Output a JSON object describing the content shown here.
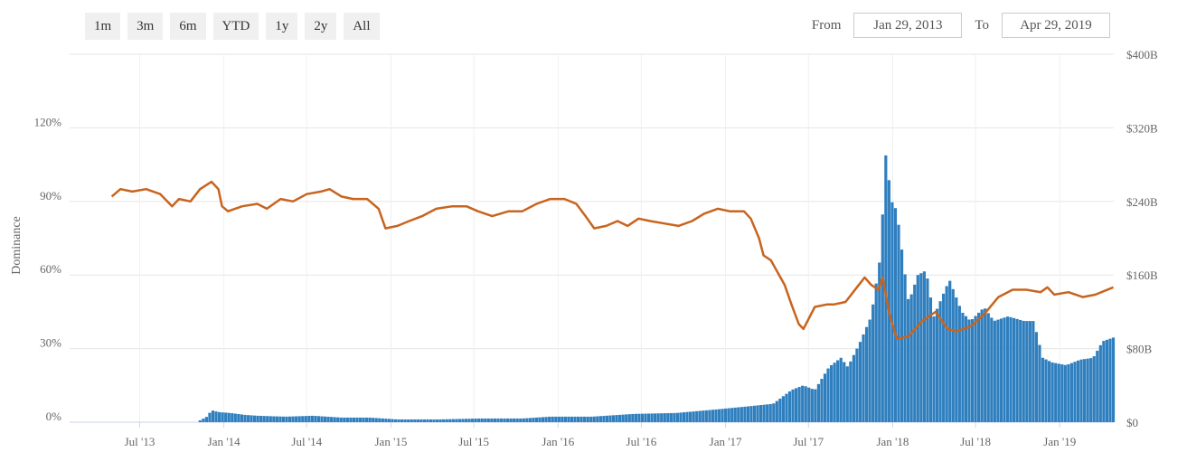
{
  "toolbar": {
    "ranges": [
      "1m",
      "3m",
      "6m",
      "YTD",
      "1y",
      "2y",
      "All"
    ]
  },
  "date_range": {
    "from_label": "From",
    "from_value": "Jan 29, 2013",
    "to_label": "To",
    "to_value": "Apr 29, 2019"
  },
  "colors": {
    "dominance_line": "#c8641e",
    "market_cap_bars": "#2f7fbf",
    "grid": "#e6e6e6"
  },
  "chart_data": {
    "type": "bar",
    "title": "",
    "ylabel_left": "Dominance",
    "ylabel_right": "",
    "left_axis": {
      "ticks": [
        0,
        30,
        60,
        90,
        120
      ],
      "labels": [
        "0%",
        "30%",
        "60%",
        "90%",
        "120%"
      ],
      "range": [
        0,
        150
      ]
    },
    "right_axis": {
      "ticks": [
        0,
        80,
        160,
        240,
        320,
        400
      ],
      "labels": [
        "$0",
        "$80B",
        "$160B",
        "$240B",
        "$320B",
        "$400B"
      ],
      "range": [
        0,
        400
      ]
    },
    "x_axis": {
      "range": [
        "2013-01-29",
        "2019-04-29"
      ],
      "ticks": [
        "2013-07-01",
        "2014-01-01",
        "2014-07-01",
        "2015-01-01",
        "2015-07-01",
        "2016-01-01",
        "2016-07-01",
        "2017-01-01",
        "2017-07-01",
        "2018-01-01",
        "2018-07-01",
        "2019-01-01"
      ],
      "tick_labels": [
        "Jul '13",
        "Jan '14",
        "Jul '14",
        "Jan '15",
        "Jul '15",
        "Jan '16",
        "Jul '16",
        "Jan '17",
        "Jul '17",
        "Jan '18",
        "Jul '18",
        "Jan '19"
      ]
    },
    "grid": true,
    "series": [
      {
        "type": "line",
        "axis": "left",
        "points": [
          [
            "2013-05-01",
            92
          ],
          [
            "2013-05-20",
            95
          ],
          [
            "2013-06-15",
            94
          ],
          [
            "2013-07-15",
            95
          ],
          [
            "2013-08-15",
            93
          ],
          [
            "2013-09-10",
            88
          ],
          [
            "2013-09-25",
            91
          ],
          [
            "2013-10-20",
            90
          ],
          [
            "2013-11-10",
            95
          ],
          [
            "2013-12-05",
            98
          ],
          [
            "2013-12-20",
            95
          ],
          [
            "2013-12-28",
            88
          ],
          [
            "2014-01-10",
            86
          ],
          [
            "2014-02-10",
            88
          ],
          [
            "2014-03-15",
            89
          ],
          [
            "2014-04-05",
            87
          ],
          [
            "2014-05-05",
            91
          ],
          [
            "2014-06-01",
            90
          ],
          [
            "2014-07-01",
            93
          ],
          [
            "2014-08-01",
            94
          ],
          [
            "2014-08-20",
            95
          ],
          [
            "2014-09-15",
            92
          ],
          [
            "2014-10-10",
            91
          ],
          [
            "2014-11-10",
            91
          ],
          [
            "2014-12-05",
            87
          ],
          [
            "2014-12-20",
            79
          ],
          [
            "2015-01-15",
            80
          ],
          [
            "2015-02-10",
            82
          ],
          [
            "2015-03-10",
            84
          ],
          [
            "2015-04-10",
            87
          ],
          [
            "2015-05-15",
            88
          ],
          [
            "2015-06-15",
            88
          ],
          [
            "2015-07-10",
            86
          ],
          [
            "2015-08-10",
            84
          ],
          [
            "2015-09-15",
            86
          ],
          [
            "2015-10-15",
            86
          ],
          [
            "2015-11-15",
            89
          ],
          [
            "2015-12-15",
            91
          ],
          [
            "2016-01-15",
            91
          ],
          [
            "2016-02-10",
            89
          ],
          [
            "2016-03-01",
            84
          ],
          [
            "2016-03-20",
            79
          ],
          [
            "2016-04-15",
            80
          ],
          [
            "2016-05-10",
            82
          ],
          [
            "2016-06-01",
            80
          ],
          [
            "2016-06-25",
            83
          ],
          [
            "2016-07-20",
            82
          ],
          [
            "2016-08-20",
            81
          ],
          [
            "2016-09-20",
            80
          ],
          [
            "2016-10-20",
            82
          ],
          [
            "2016-11-15",
            85
          ],
          [
            "2016-12-15",
            87
          ],
          [
            "2017-01-10",
            86
          ],
          [
            "2017-02-10",
            86
          ],
          [
            "2017-02-25",
            83
          ],
          [
            "2017-03-15",
            75
          ],
          [
            "2017-03-25",
            68
          ],
          [
            "2017-04-10",
            66
          ],
          [
            "2017-05-10",
            56
          ],
          [
            "2017-05-25",
            48
          ],
          [
            "2017-06-10",
            40
          ],
          [
            "2017-06-20",
            38
          ],
          [
            "2017-07-15",
            47
          ],
          [
            "2017-08-10",
            48
          ],
          [
            "2017-08-25",
            48
          ],
          [
            "2017-09-20",
            49
          ],
          [
            "2017-10-15",
            55
          ],
          [
            "2017-11-01",
            59
          ],
          [
            "2017-11-15",
            56
          ],
          [
            "2017-12-01",
            54
          ],
          [
            "2017-12-10",
            59
          ],
          [
            "2017-12-25",
            44
          ],
          [
            "2018-01-10",
            34
          ],
          [
            "2018-02-05",
            35
          ],
          [
            "2018-03-05",
            41
          ],
          [
            "2018-04-05",
            45
          ],
          [
            "2018-05-01",
            38
          ],
          [
            "2018-05-20",
            37
          ],
          [
            "2018-06-20",
            39
          ],
          [
            "2018-07-20",
            44
          ],
          [
            "2018-08-20",
            51
          ],
          [
            "2018-09-20",
            54
          ],
          [
            "2018-10-20",
            54
          ],
          [
            "2018-11-20",
            53
          ],
          [
            "2018-12-05",
            55
          ],
          [
            "2018-12-20",
            52
          ],
          [
            "2019-01-20",
            53
          ],
          [
            "2019-02-20",
            51
          ],
          [
            "2019-03-20",
            52
          ],
          [
            "2019-04-28",
            55
          ]
        ]
      },
      {
        "type": "bar",
        "axis": "right",
        "points": [
          [
            "2013-11-10",
            2
          ],
          [
            "2013-11-25",
            6
          ],
          [
            "2013-12-05",
            13
          ],
          [
            "2013-12-20",
            11
          ],
          [
            "2014-01-15",
            10
          ],
          [
            "2014-02-15",
            8
          ],
          [
            "2014-03-15",
            7
          ],
          [
            "2014-05-15",
            6
          ],
          [
            "2014-07-15",
            7
          ],
          [
            "2014-09-15",
            5
          ],
          [
            "2014-11-15",
            5
          ],
          [
            "2015-01-15",
            3
          ],
          [
            "2015-04-15",
            3
          ],
          [
            "2015-07-15",
            4
          ],
          [
            "2015-10-15",
            4
          ],
          [
            "2015-12-15",
            6
          ],
          [
            "2016-03-15",
            6
          ],
          [
            "2016-06-15",
            9
          ],
          [
            "2016-09-15",
            10
          ],
          [
            "2016-12-15",
            14
          ],
          [
            "2017-02-15",
            17
          ],
          [
            "2017-04-15",
            20
          ],
          [
            "2017-05-25",
            35
          ],
          [
            "2017-06-20",
            40
          ],
          [
            "2017-07-15",
            35
          ],
          [
            "2017-08-15",
            60
          ],
          [
            "2017-09-10",
            70
          ],
          [
            "2017-09-25",
            60
          ],
          [
            "2017-10-20",
            85
          ],
          [
            "2017-11-15",
            115
          ],
          [
            "2017-12-05",
            180
          ],
          [
            "2017-12-17",
            290
          ],
          [
            "2017-12-30",
            240
          ],
          [
            "2018-01-10",
            230
          ],
          [
            "2018-02-05",
            130
          ],
          [
            "2018-02-25",
            160
          ],
          [
            "2018-03-15",
            165
          ],
          [
            "2018-04-01",
            115
          ],
          [
            "2018-05-05",
            155
          ],
          [
            "2018-06-01",
            120
          ],
          [
            "2018-06-20",
            110
          ],
          [
            "2018-07-20",
            125
          ],
          [
            "2018-08-10",
            110
          ],
          [
            "2018-09-10",
            115
          ],
          [
            "2018-10-15",
            110
          ],
          [
            "2018-11-05",
            110
          ],
          [
            "2018-11-25",
            70
          ],
          [
            "2018-12-15",
            65
          ],
          [
            "2019-01-15",
            62
          ],
          [
            "2019-02-15",
            68
          ],
          [
            "2019-03-15",
            70
          ],
          [
            "2019-04-05",
            88
          ],
          [
            "2019-04-28",
            92
          ]
        ]
      }
    ]
  }
}
